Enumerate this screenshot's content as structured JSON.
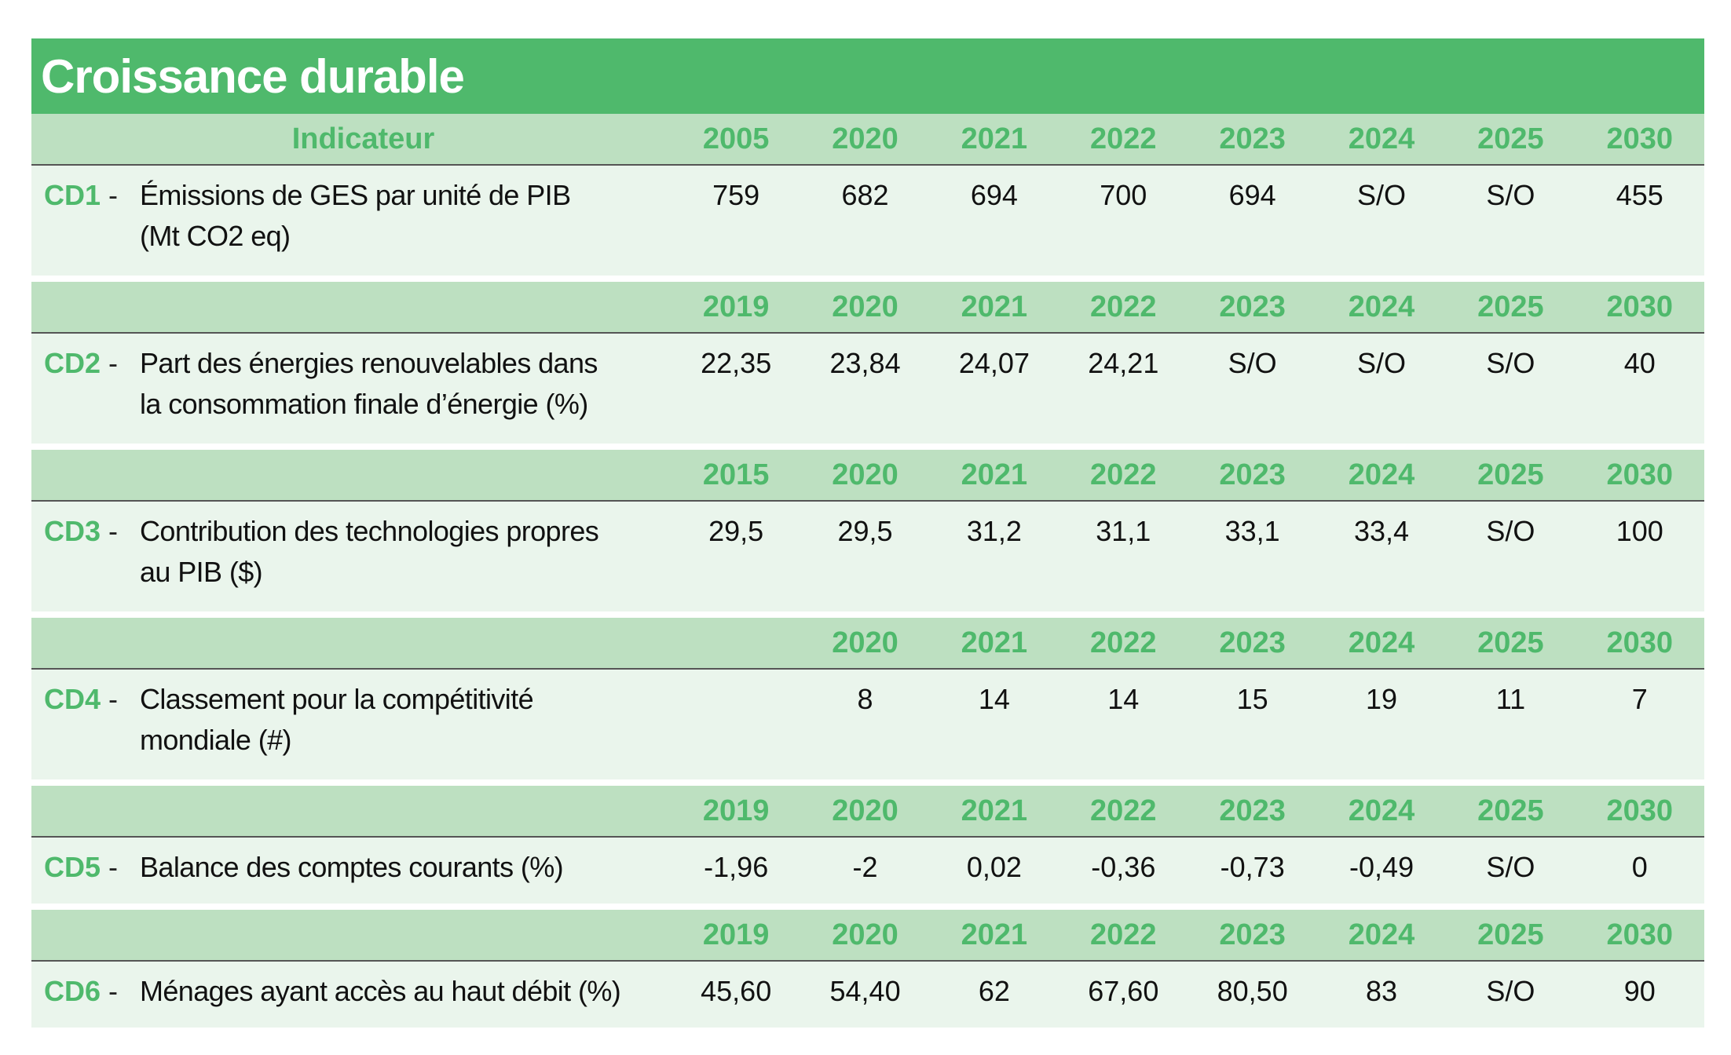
{
  "title": "Croissance durable",
  "header_label": "Indicateur",
  "indicators": [
    {
      "code": "CD1",
      "desc_line1": "Émissions de GES par unité de PIB",
      "desc_line2": "(Mt CO2 eq)",
      "years": [
        "2005",
        "2020",
        "2021",
        "2022",
        "2023",
        "2024",
        "2025",
        "2030"
      ],
      "values": [
        "759",
        "682",
        "694",
        "700",
        "694",
        "S/O",
        "S/O",
        "455"
      ]
    },
    {
      "code": "CD2",
      "desc_line1": "Part des énergies renouvelables dans",
      "desc_line2": "la consommation finale d’énergie (%)",
      "years": [
        "2019",
        "2020",
        "2021",
        "2022",
        "2023",
        "2024",
        "2025",
        "2030"
      ],
      "values": [
        "22,35",
        "23,84",
        "24,07",
        "24,21",
        "S/O",
        "S/O",
        "S/O",
        "40"
      ]
    },
    {
      "code": "CD3",
      "desc_line1": "Contribution des technologies propres",
      "desc_line2": "au PIB ($)",
      "years": [
        "2015",
        "2020",
        "2021",
        "2022",
        "2023",
        "2024",
        "2025",
        "2030"
      ],
      "values": [
        "29,5",
        "29,5",
        "31,2",
        "31,1",
        "33,1",
        "33,4",
        "S/O",
        "100"
      ]
    },
    {
      "code": "CD4",
      "desc_line1": "Classement pour la compétitivité",
      "desc_line2": "mondiale (#)",
      "years": [
        "",
        "2020",
        "2021",
        "2022",
        "2023",
        "2024",
        "2025",
        "2030"
      ],
      "values": [
        "",
        "8",
        "14",
        "14",
        "15",
        "19",
        "11",
        "7"
      ]
    },
    {
      "code": "CD5",
      "desc_line1": "Balance des comptes courants (%)",
      "desc_line2": "",
      "years": [
        "2019",
        "2020",
        "2021",
        "2022",
        "2023",
        "2024",
        "2025",
        "2030"
      ],
      "values": [
        "-1,96",
        "-2",
        "0,02",
        "-0,36",
        "-0,73",
        "-0,49",
        "S/O",
        "0"
      ]
    },
    {
      "code": "CD6",
      "desc_line1": "Ménages ayant accès au haut débit (%)",
      "desc_line2": "",
      "years": [
        "2019",
        "2020",
        "2021",
        "2022",
        "2023",
        "2024",
        "2025",
        "2030"
      ],
      "values": [
        "45,60",
        "54,40",
        "62",
        "67,60",
        "80,50",
        "83",
        "S/O",
        "90"
      ]
    }
  ],
  "colors": {
    "title_bg": "#4fb96c",
    "header_bg": "#bde0c1",
    "row_bg": "#eaf5ec",
    "accent_text": "#4fb96c"
  }
}
